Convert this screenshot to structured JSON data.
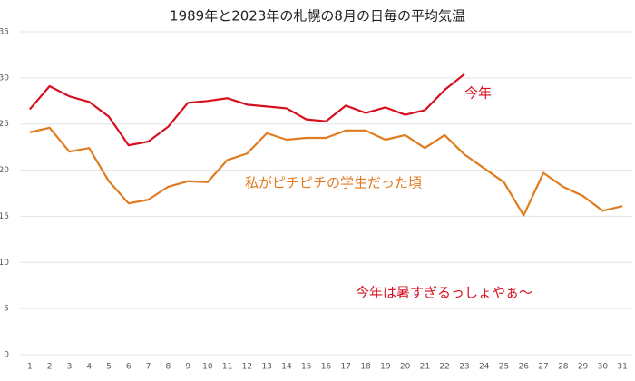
{
  "chart_data": {
    "type": "line",
    "title": "1989年と2023年の札幌の8月の日毎の平均気温",
    "categories": [
      "1",
      "2",
      "3",
      "4",
      "5",
      "6",
      "7",
      "8",
      "9",
      "10",
      "11",
      "12",
      "13",
      "14",
      "15",
      "16",
      "17",
      "18",
      "19",
      "20",
      "21",
      "22",
      "23",
      "24",
      "25",
      "26",
      "27",
      "28",
      "29",
      "30",
      "31"
    ],
    "series": [
      {
        "name": "今年",
        "color": "#d6101f",
        "values": [
          26.6,
          29.1,
          28.0,
          27.4,
          25.8,
          22.7,
          23.1,
          24.7,
          27.3,
          27.5,
          27.8,
          27.1,
          26.9,
          26.7,
          25.5,
          25.3,
          27.0,
          26.2,
          26.8,
          26.0,
          26.5,
          28.7,
          30.4,
          null,
          null,
          null,
          null,
          null,
          null,
          null,
          null
        ]
      },
      {
        "name": "私がピチピチの学生だった頃",
        "color": "#e07b1f",
        "values": [
          24.1,
          24.6,
          22.0,
          22.4,
          18.8,
          16.4,
          16.8,
          18.2,
          18.8,
          18.7,
          21.1,
          21.8,
          24.0,
          23.3,
          23.5,
          23.5,
          24.3,
          24.3,
          23.3,
          23.8,
          22.4,
          23.8,
          21.7,
          20.2,
          18.7,
          15.1,
          19.7,
          18.2,
          17.2,
          15.6,
          16.1
        ]
      }
    ],
    "annotations": [
      "今年は暑すぎるっしょやぁ～"
    ],
    "ylim": [
      0,
      35
    ],
    "yticks": [
      0,
      5,
      10,
      15,
      20,
      25,
      30,
      35
    ],
    "grid": true
  }
}
